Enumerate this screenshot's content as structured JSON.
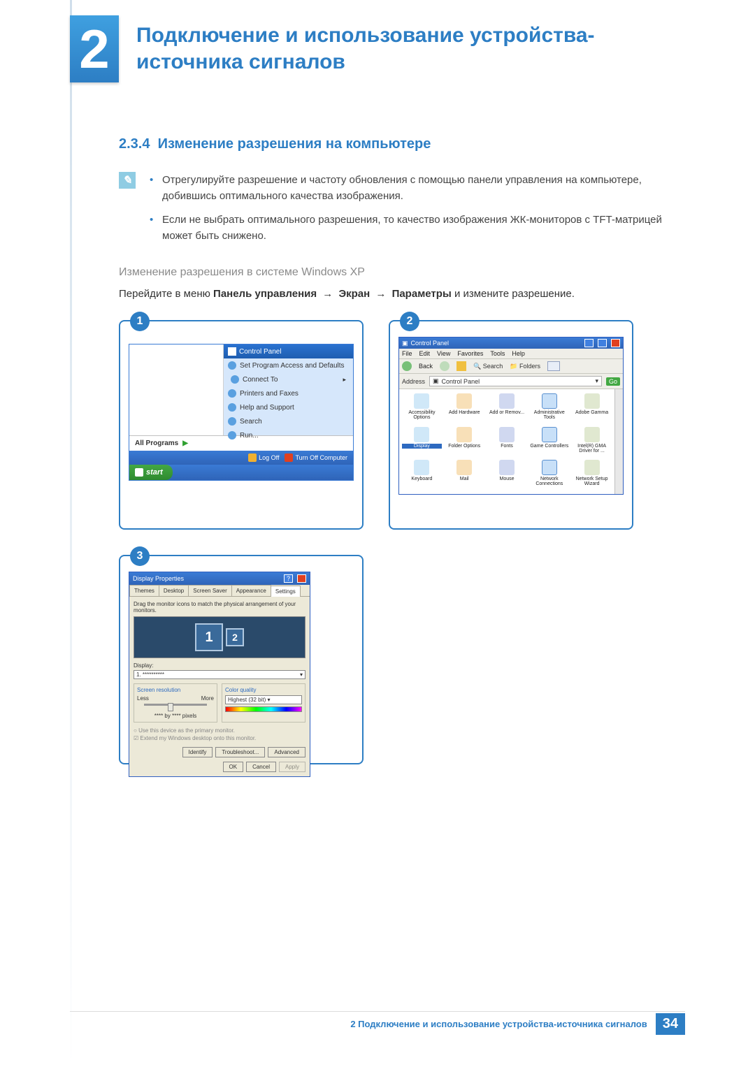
{
  "colors": {
    "primary": "#2d7ec4",
    "chapter_grad_top": "#3fa0e0",
    "chapter_grad_bottom": "#2d7ec4",
    "xp_blue_top": "#3a7bd5",
    "xp_blue_bottom": "#2f64b8",
    "xp_green": "#43a843",
    "xp_red": "#e04020",
    "panel_beige": "#ece9d8",
    "note_icon_bg": "#8fcce3",
    "grey_text": "#8a8a8a"
  },
  "chapter": {
    "number": "2",
    "title": "Подключение и использование устройства-источника сигналов"
  },
  "section": {
    "number": "2.3.4",
    "title": "Изменение разрешения на компьютере"
  },
  "notes": [
    "Отрегулируйте разрешение и частоту обновления с помощью панели управления на компьютере, добившись оптимального качества изображения.",
    "Если не выбрать оптимального разрешения, то качество изображения ЖК-мониторов с TFT-матрицей может быть снижено."
  ],
  "subheading": "Изменение разрешения в системе Windows XP",
  "instruction": {
    "prefix": "Перейдите в меню ",
    "path": [
      "Панель управления",
      "Экран",
      "Параметры"
    ],
    "suffix": " и измените разрешение.",
    "arrow": "→"
  },
  "steps": {
    "1": {
      "header": "Control Panel",
      "menu_items": [
        "Set Program Access and Defaults",
        "Connect To",
        "Printers and Faxes",
        "Help and Support",
        "Search",
        "Run..."
      ],
      "all_programs": "All Programs",
      "log_off": "Log Off",
      "turn_off": "Turn Off Computer",
      "start": "start"
    },
    "2": {
      "title": "Control Panel",
      "menubar": [
        "File",
        "Edit",
        "View",
        "Favorites",
        "Tools",
        "Help"
      ],
      "toolbar": {
        "back": "Back",
        "search": "Search",
        "folders": "Folders"
      },
      "address_label": "Address",
      "address_value": "Control Panel",
      "go": "Go",
      "icons": [
        {
          "label": "Accessibility Options"
        },
        {
          "label": "Add Hardware"
        },
        {
          "label": "Add or Remov..."
        },
        {
          "label": "Administrative Tools"
        },
        {
          "label": "Adobe Gamma"
        },
        {
          "label": "Display",
          "selected": true
        },
        {
          "label": "Folder Options"
        },
        {
          "label": "Fonts"
        },
        {
          "label": "Game Controllers"
        },
        {
          "label": "Intel(R) GMA Driver for ..."
        },
        {
          "label": "Keyboard"
        },
        {
          "label": "Mail"
        },
        {
          "label": "Mouse"
        },
        {
          "label": "Network Connections"
        },
        {
          "label": "Network Setup Wizard"
        }
      ]
    },
    "3": {
      "title": "Display Properties",
      "tabs": [
        "Themes",
        "Desktop",
        "Screen Saver",
        "Appearance",
        "Settings"
      ],
      "active_tab": "Settings",
      "drag_text": "Drag the monitor icons to match the physical arrangement of your monitors.",
      "monitors": [
        "1",
        "2"
      ],
      "display_label": "Display:",
      "display_value": "1. **********",
      "screen_res_label": "Screen resolution",
      "less": "Less",
      "more": "More",
      "res_value": "**** by **** pixels",
      "color_quality_label": "Color quality",
      "color_quality_value": "Highest (32 bit)",
      "chk1": "Use this device as the primary monitor.",
      "chk2": "Extend my Windows desktop onto this monitor.",
      "identify": "Identify",
      "troubleshoot": "Troubleshoot...",
      "advanced": "Advanced",
      "ok": "OK",
      "cancel": "Cancel",
      "apply": "Apply"
    }
  },
  "footer": {
    "text": "2 Подключение и использование устройства-источника сигналов",
    "page": "34"
  }
}
